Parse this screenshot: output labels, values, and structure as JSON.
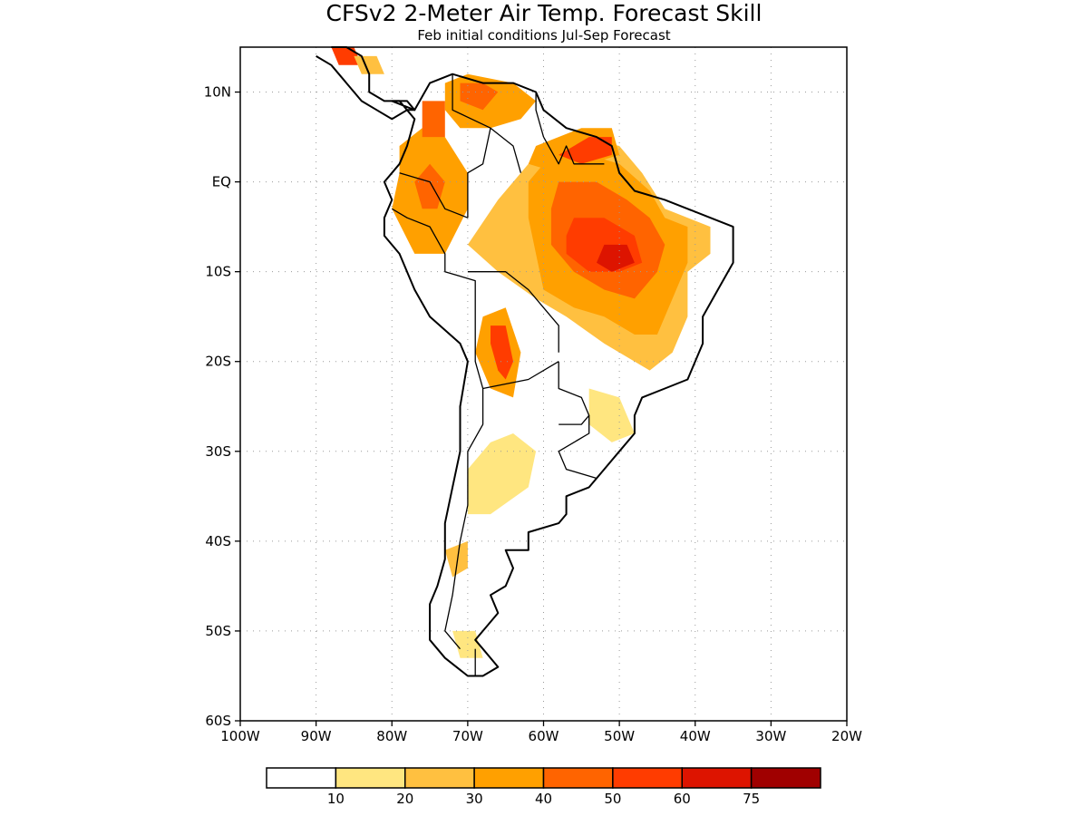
{
  "title": "CFSv2 2-Meter Air Temp. Forecast Skill",
  "subtitle": "Feb initial conditions  Jul-Sep Forecast",
  "axes": {
    "x_ticks": [
      "100W",
      "90W",
      "80W",
      "70W",
      "60W",
      "50W",
      "40W",
      "30W",
      "20W"
    ],
    "x_values": [
      -100,
      -90,
      -80,
      -70,
      -60,
      -50,
      -40,
      -30,
      -20
    ],
    "y_ticks": [
      "10N",
      "EQ",
      "10S",
      "20S",
      "30S",
      "40S",
      "50S",
      "60S"
    ],
    "y_values": [
      10,
      0,
      -10,
      -20,
      -30,
      -40,
      -50,
      -60
    ],
    "lon_range": [
      -100,
      -20
    ],
    "lat_range": [
      -60,
      15
    ],
    "grid": "dotted"
  },
  "legend": {
    "placement": "bottom",
    "colors": [
      "#ffffff",
      "#ffe680",
      "#ffc040",
      "#ffa000",
      "#ff6400",
      "#ff3c00",
      "#dd1400",
      "#a00000"
    ],
    "labels": [
      "10",
      "20",
      "30",
      "40",
      "50",
      "60",
      "75"
    ]
  },
  "skill_regions": [
    {
      "level": 2,
      "points": [
        [
          -61,
          3
        ],
        [
          -55,
          5
        ],
        [
          -50,
          4
        ],
        [
          -47,
          1
        ],
        [
          -44,
          -3
        ],
        [
          -38,
          -5
        ],
        [
          -38,
          -8
        ],
        [
          -41,
          -10
        ],
        [
          -41,
          -15
        ],
        [
          -43,
          -19
        ],
        [
          -46,
          -21
        ],
        [
          -52,
          -18
        ],
        [
          -57,
          -15
        ],
        [
          -61,
          -13
        ],
        [
          -66,
          -10
        ],
        [
          -70,
          -7
        ],
        [
          -66,
          -2
        ],
        [
          -63,
          1
        ]
      ]
    },
    {
      "level": 3,
      "points": [
        [
          -60,
          2
        ],
        [
          -54,
          3
        ],
        [
          -50,
          2
        ],
        [
          -46,
          -1
        ],
        [
          -44,
          -4
        ],
        [
          -41,
          -5
        ],
        [
          -41,
          -9
        ],
        [
          -43,
          -13
        ],
        [
          -45,
          -17
        ],
        [
          -48,
          -17
        ],
        [
          -52,
          -15
        ],
        [
          -56,
          -14
        ],
        [
          -60,
          -12
        ],
        [
          -61,
          -8
        ],
        [
          -62,
          -4
        ],
        [
          -62,
          0
        ]
      ]
    },
    {
      "level": 4,
      "points": [
        [
          -58,
          0
        ],
        [
          -53,
          0
        ],
        [
          -49,
          -2
        ],
        [
          -46,
          -4
        ],
        [
          -44,
          -7
        ],
        [
          -45,
          -10
        ],
        [
          -48,
          -13
        ],
        [
          -52,
          -12
        ],
        [
          -56,
          -10
        ],
        [
          -59,
          -7
        ],
        [
          -59,
          -3
        ]
      ]
    },
    {
      "level": 5,
      "points": [
        [
          -56,
          -4
        ],
        [
          -52,
          -4
        ],
        [
          -48,
          -6
        ],
        [
          -47,
          -9
        ],
        [
          -50,
          -10
        ],
        [
          -54,
          -10
        ],
        [
          -57,
          -8
        ],
        [
          -57,
          -6
        ]
      ]
    },
    {
      "level": 6,
      "points": [
        [
          -52,
          -7
        ],
        [
          -49,
          -7
        ],
        [
          -48,
          -9
        ],
        [
          -51,
          -10
        ],
        [
          -53,
          -9
        ]
      ]
    },
    {
      "level": 3,
      "points": [
        [
          -61,
          4
        ],
        [
          -55,
          6
        ],
        [
          -51,
          6
        ],
        [
          -50,
          3
        ],
        [
          -54,
          2
        ],
        [
          -58,
          1
        ],
        [
          -62,
          2
        ]
      ]
    },
    {
      "level": 5,
      "points": [
        [
          -58,
          3
        ],
        [
          -54,
          5
        ],
        [
          -51,
          5
        ],
        [
          -51,
          3
        ],
        [
          -55,
          2
        ]
      ]
    },
    {
      "level": 3,
      "points": [
        [
          -79,
          4
        ],
        [
          -76,
          6
        ],
        [
          -73,
          5
        ],
        [
          -70,
          1
        ],
        [
          -70,
          -3
        ],
        [
          -73,
          -8
        ],
        [
          -77,
          -8
        ],
        [
          -80,
          -3
        ],
        [
          -79,
          1
        ]
      ]
    },
    {
      "level": 4,
      "points": [
        [
          -77,
          0
        ],
        [
          -75,
          2
        ],
        [
          -73,
          0
        ],
        [
          -74,
          -3
        ],
        [
          -76,
          -3
        ]
      ]
    },
    {
      "level": 3,
      "points": [
        [
          -73,
          11
        ],
        [
          -70,
          12
        ],
        [
          -64,
          11
        ],
        [
          -61,
          9
        ],
        [
          -63,
          7
        ],
        [
          -67,
          6
        ],
        [
          -71,
          6
        ],
        [
          -73,
          8
        ]
      ]
    },
    {
      "level": 4,
      "points": [
        [
          -71,
          11
        ],
        [
          -68,
          11
        ],
        [
          -66,
          10
        ],
        [
          -68,
          8
        ],
        [
          -71,
          9
        ]
      ]
    },
    {
      "level": 3,
      "points": [
        [
          -68,
          -15
        ],
        [
          -65,
          -14
        ],
        [
          -63,
          -19
        ],
        [
          -64,
          -24
        ],
        [
          -67,
          -23
        ],
        [
          -69,
          -19
        ]
      ]
    },
    {
      "level": 5,
      "points": [
        [
          -67,
          -16
        ],
        [
          -65,
          -16
        ],
        [
          -64,
          -20
        ],
        [
          -65,
          -22
        ],
        [
          -66,
          -21
        ],
        [
          -67,
          -18
        ]
      ]
    },
    {
      "level": 1,
      "points": [
        [
          -67,
          -29
        ],
        [
          -64,
          -28
        ],
        [
          -61,
          -30
        ],
        [
          -62,
          -34
        ],
        [
          -67,
          -37
        ],
        [
          -70,
          -37
        ],
        [
          -70,
          -32
        ]
      ]
    },
    {
      "level": 1,
      "points": [
        [
          -54,
          -23
        ],
        [
          -50,
          -24
        ],
        [
          -48,
          -28
        ],
        [
          -51,
          -29
        ],
        [
          -54,
          -27
        ]
      ]
    },
    {
      "level": 2,
      "points": [
        [
          -73,
          -41
        ],
        [
          -70,
          -40
        ],
        [
          -70,
          -43
        ],
        [
          -72,
          -44
        ]
      ]
    },
    {
      "level": 1,
      "points": [
        [
          -72,
          -50
        ],
        [
          -69,
          -50
        ],
        [
          -68,
          -53
        ],
        [
          -71,
          -53
        ]
      ]
    },
    {
      "level": 5,
      "points": [
        [
          -88,
          15
        ],
        [
          -85,
          15
        ],
        [
          -84,
          13
        ],
        [
          -87,
          13
        ]
      ]
    },
    {
      "level": 2,
      "points": [
        [
          -85,
          14
        ],
        [
          -82,
          14
        ],
        [
          -81,
          12
        ],
        [
          -84,
          12
        ]
      ]
    },
    {
      "level": 4,
      "points": [
        [
          -76,
          9
        ],
        [
          -73,
          9
        ],
        [
          -73,
          5
        ],
        [
          -76,
          5
        ]
      ]
    }
  ],
  "coastline": [
    [
      -80,
      9
    ],
    [
      -77,
      8
    ],
    [
      -75,
      11
    ],
    [
      -72,
      12
    ],
    [
      -68,
      11
    ],
    [
      -64,
      11
    ],
    [
      -61,
      10
    ],
    [
      -60,
      8
    ],
    [
      -57,
      6
    ],
    [
      -53,
      5
    ],
    [
      -51,
      4
    ],
    [
      -50,
      1
    ],
    [
      -48,
      -1
    ],
    [
      -44,
      -2
    ],
    [
      -41,
      -3
    ],
    [
      -38,
      -4
    ],
    [
      -35,
      -5
    ],
    [
      -35,
      -9
    ],
    [
      -37,
      -12
    ],
    [
      -39,
      -15
    ],
    [
      -39,
      -18
    ],
    [
      -41,
      -22
    ],
    [
      -44,
      -23
    ],
    [
      -47,
      -24
    ],
    [
      -48,
      -26
    ],
    [
      -48,
      -28
    ],
    [
      -50,
      -30
    ],
    [
      -52,
      -32
    ],
    [
      -54,
      -34
    ],
    [
      -57,
      -35
    ],
    [
      -57,
      -37
    ],
    [
      -58,
      -38
    ],
    [
      -62,
      -39
    ],
    [
      -62,
      -41
    ],
    [
      -65,
      -41
    ],
    [
      -64,
      -43
    ],
    [
      -65,
      -45
    ],
    [
      -67,
      -46
    ],
    [
      -66,
      -48
    ],
    [
      -68,
      -50
    ],
    [
      -69,
      -51
    ],
    [
      -68,
      -52
    ],
    [
      -66,
      -54
    ],
    [
      -68,
      -55
    ],
    [
      -70,
      -55
    ],
    [
      -73,
      -53
    ],
    [
      -75,
      -51
    ],
    [
      -75,
      -47
    ],
    [
      -74,
      -45
    ],
    [
      -73,
      -42
    ],
    [
      -73,
      -38
    ],
    [
      -72,
      -34
    ],
    [
      -71,
      -30
    ],
    [
      -71,
      -25
    ],
    [
      -70,
      -20
    ],
    [
      -71,
      -18
    ],
    [
      -75,
      -15
    ],
    [
      -77,
      -12
    ],
    [
      -79,
      -8
    ],
    [
      -81,
      -6
    ],
    [
      -81,
      -4
    ],
    [
      -80,
      -2
    ],
    [
      -81,
      0
    ],
    [
      -80,
      1
    ],
    [
      -79,
      2
    ],
    [
      -78,
      4
    ],
    [
      -77,
      7
    ],
    [
      -79,
      9
    ]
  ],
  "central_america": [
    [
      -88,
      15
    ],
    [
      -86,
      15
    ],
    [
      -84,
      14
    ],
    [
      -83,
      12
    ],
    [
      -83,
      10
    ],
    [
      -81,
      9
    ],
    [
      -80,
      9
    ],
    [
      -78,
      9
    ],
    [
      -77,
      8
    ],
    [
      -78,
      8
    ],
    [
      -80,
      7
    ],
    [
      -82,
      8
    ],
    [
      -84,
      9
    ],
    [
      -86,
      11
    ],
    [
      -88,
      13
    ],
    [
      -90,
      14
    ]
  ],
  "borders": [
    [
      [
        -72,
        12
      ],
      [
        -72,
        8
      ],
      [
        -67,
        6
      ],
      [
        -68,
        2
      ],
      [
        -70,
        1
      ],
      [
        -70,
        -4
      ]
    ],
    [
      [
        -67,
        6
      ],
      [
        -64,
        4
      ],
      [
        -63,
        1
      ]
    ],
    [
      [
        -61,
        10
      ],
      [
        -61,
        8
      ],
      [
        -60,
        5
      ]
    ],
    [
      [
        -60,
        5
      ],
      [
        -58,
        2
      ],
      [
        -57,
        4
      ],
      [
        -56,
        2
      ],
      [
        -54,
        2
      ],
      [
        -52,
        2
      ]
    ],
    [
      [
        -79,
        1
      ],
      [
        -75,
        0
      ],
      [
        -73,
        -3
      ],
      [
        -70,
        -4
      ]
    ],
    [
      [
        -80,
        -3
      ],
      [
        -78,
        -4
      ],
      [
        -75,
        -5
      ],
      [
        -73,
        -8
      ],
      [
        -73,
        -10
      ],
      [
        -69,
        -11
      ],
      [
        -69,
        -13
      ],
      [
        -69,
        -17
      ]
    ],
    [
      [
        -70,
        -10
      ],
      [
        -65,
        -10
      ],
      [
        -62,
        -12
      ],
      [
        -60,
        -14
      ],
      [
        -58,
        -16
      ],
      [
        -58,
        -19
      ]
    ],
    [
      [
        -69,
        -17
      ],
      [
        -69,
        -20
      ],
      [
        -68,
        -23
      ],
      [
        -62,
        -22
      ],
      [
        -58,
        -20
      ]
    ],
    [
      [
        -58,
        -20
      ],
      [
        -58,
        -23
      ],
      [
        -55,
        -24
      ],
      [
        -54,
        -26
      ],
      [
        -55,
        -27
      ],
      [
        -58,
        -27
      ]
    ],
    [
      [
        -54,
        -26
      ],
      [
        -54,
        -28
      ],
      [
        -58,
        -30
      ],
      [
        -57,
        -32
      ],
      [
        -53,
        -33
      ]
    ],
    [
      [
        -68,
        -23
      ],
      [
        -68,
        -27
      ],
      [
        -70,
        -30
      ],
      [
        -70,
        -36
      ],
      [
        -71,
        -40
      ],
      [
        -72,
        -46
      ],
      [
        -73,
        -50
      ],
      [
        -71,
        -52
      ]
    ],
    [
      [
        -69,
        -52
      ],
      [
        -69,
        -55
      ]
    ]
  ]
}
